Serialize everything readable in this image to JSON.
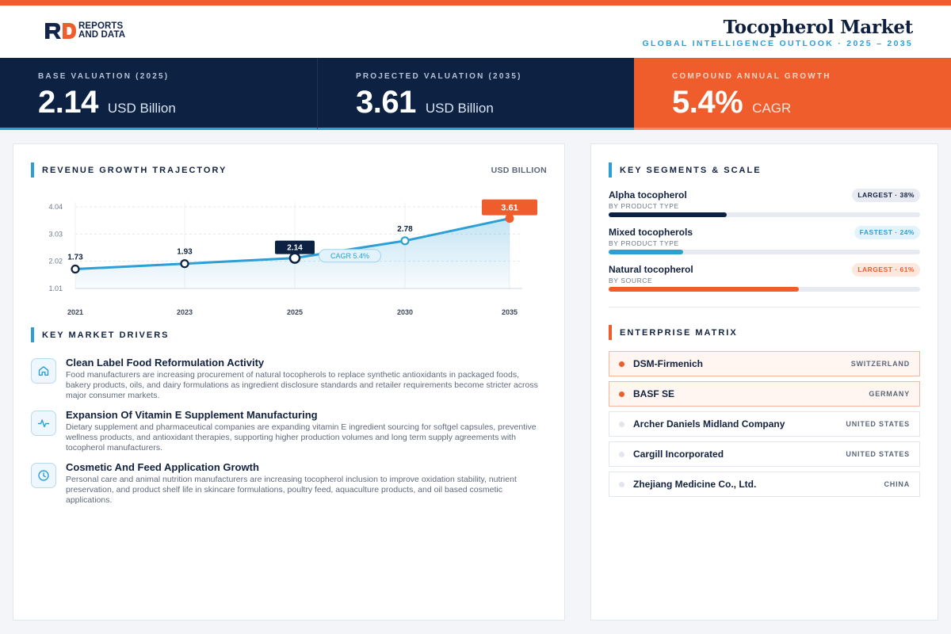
{
  "brand": {
    "line1": "REPORTS",
    "line2": "AND DATA",
    "colors": {
      "navy": "#13244a",
      "orange": "#ef5d2c"
    }
  },
  "header": {
    "title": "Tocopherol Market",
    "subtitle": "GLOBAL INTELLIGENCE OUTLOOK · 2025 – 2035"
  },
  "kpis": [
    {
      "label": "BASE VALUATION (2025)",
      "value": "2.14",
      "unit": "USD Billion"
    },
    {
      "label": "PROJECTED VALUATION (2035)",
      "value": "3.61",
      "unit": "USD Billion"
    },
    {
      "label": "COMPOUND ANNUAL GROWTH",
      "value": "5.4%",
      "unit": "CAGR"
    }
  ],
  "trajectory": {
    "title": "REVENUE GROWTH TRAJECTORY",
    "unit": "USD BILLION",
    "cagr_label": "CAGR 5.4%"
  },
  "chart_data": {
    "type": "line",
    "x": [
      "2021",
      "2023",
      "2025",
      "2030",
      "2035"
    ],
    "values": [
      1.73,
      1.93,
      2.14,
      2.78,
      3.61
    ],
    "value_labels": [
      "1.73",
      "1.93",
      "2.14",
      "2.78",
      "3.61"
    ],
    "yticks": [
      "4.04",
      "3.03",
      "2.02",
      "1.01"
    ],
    "ylim": [
      1.01,
      4.04
    ],
    "highlight": {
      "base_index": 2,
      "final_index": 4
    },
    "grid": true,
    "area_fill": true,
    "colors": {
      "line": "#2b9fd6",
      "base": "#0d2242",
      "final": "#ef5d2c"
    }
  },
  "drivers": {
    "title": "KEY MARKET DRIVERS",
    "items": [
      {
        "icon": "home-icon",
        "title": "Clean Label Food Reformulation Activity",
        "body": "Food manufacturers are increasing procurement of natural tocopherols to replace synthetic antioxidants in packaged foods, bakery products, oils, and dairy formulations as ingredient disclosure standards and retailer requirements become stricter across major consumer markets."
      },
      {
        "icon": "activity-icon",
        "title": "Expansion Of Vitamin E Supplement Manufacturing",
        "body": "Dietary supplement and pharmaceutical companies are expanding vitamin E ingredient sourcing for softgel capsules, preventive wellness products, and antioxidant therapies, supporting higher production volumes and long term supply agreements with tocopherol manufacturers."
      },
      {
        "icon": "clock-icon",
        "title": "Cosmetic And Feed Application Growth",
        "body": "Personal care and animal nutrition manufacturers are increasing tocopherol inclusion to improve oxidation stability, nutrient preservation, and product shelf life in skincare formulations, poultry feed, aquaculture products, and oil based cosmetic applications."
      }
    ]
  },
  "segments": {
    "title": "KEY SEGMENTS & SCALE",
    "items": [
      {
        "name": "Alpha tocopherol",
        "sub": "BY PRODUCT TYPE",
        "badge": "LARGEST · 38%",
        "share": 0.38,
        "color": "#0d2242"
      },
      {
        "name": "Mixed tocopherols",
        "sub": "BY PRODUCT TYPE",
        "badge": "FASTEST · 24%",
        "share": 0.24,
        "color": "#2b9fd6"
      },
      {
        "name": "Natural tocopherol",
        "sub": "BY SOURCE",
        "badge": "LARGEST · 61%",
        "share": 0.61,
        "color": "#ef5d2c"
      }
    ]
  },
  "matrix": {
    "title": "ENTERPRISE MATRIX",
    "rows": [
      {
        "name": "DSM-Firmenich",
        "country": "SWITZERLAND",
        "highlight": true
      },
      {
        "name": "BASF SE",
        "country": "GERMANY",
        "highlight": true
      },
      {
        "name": "Archer Daniels Midland Company",
        "country": "UNITED STATES",
        "highlight": false
      },
      {
        "name": "Cargill Incorporated",
        "country": "UNITED STATES",
        "highlight": false
      },
      {
        "name": "Zhejiang Medicine Co., Ltd.",
        "country": "CHINA",
        "highlight": false
      }
    ]
  }
}
